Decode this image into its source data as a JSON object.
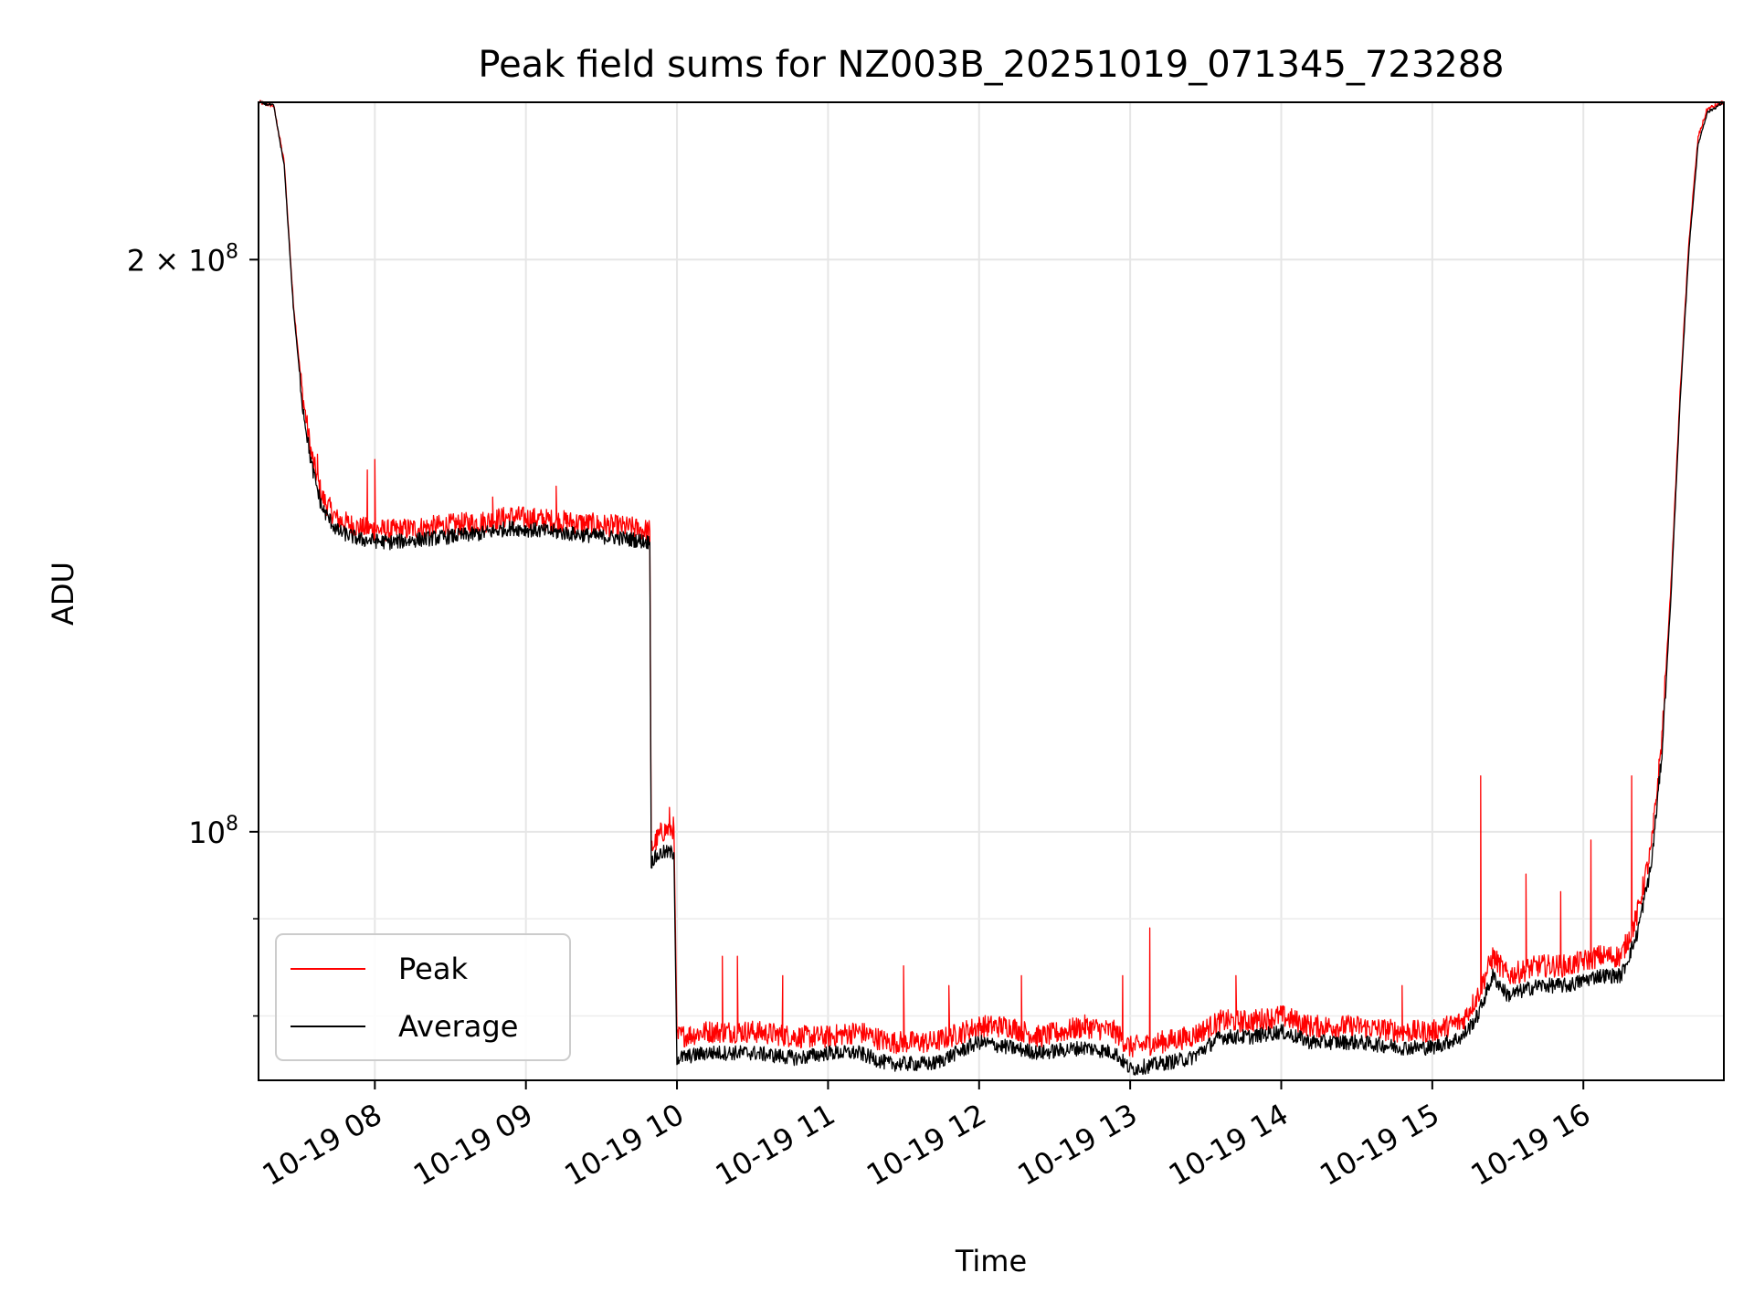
{
  "chart_data": {
    "type": "line",
    "title": "Peak field sums for NZ003B_20251019_071345_723288",
    "xlabel": "Time",
    "ylabel": "ADU",
    "yscale": "log",
    "xlim_hours": [
      7.23,
      16.93
    ],
    "ylim": [
      74000000,
      242000000
    ],
    "x_ticks": [
      {
        "value": 8,
        "label": "10-19 08"
      },
      {
        "value": 9,
        "label": "10-19 09"
      },
      {
        "value": 10,
        "label": "10-19 10"
      },
      {
        "value": 11,
        "label": "10-19 11"
      },
      {
        "value": 12,
        "label": "10-19 12"
      },
      {
        "value": 13,
        "label": "10-19 13"
      },
      {
        "value": 14,
        "label": "10-19 14"
      },
      {
        "value": 15,
        "label": "10-19 15"
      },
      {
        "value": 16,
        "label": "10-19 16"
      }
    ],
    "y_ticks_major": [
      {
        "value": 200000000,
        "base": "2 × 10",
        "exp": "8"
      },
      {
        "value": 100000000,
        "base": "10",
        "exp": "8"
      }
    ],
    "y_ticks_minor": [
      80000000,
      90000000
    ],
    "grid": true,
    "legend_position": "lower-left",
    "series": [
      {
        "name": "Peak",
        "color": "#ff0000",
        "points": [
          [
            7.23,
            242000000
          ],
          [
            7.33,
            241000000
          ],
          [
            7.4,
            225000000
          ],
          [
            7.46,
            190000000
          ],
          [
            7.52,
            170000000
          ],
          [
            7.58,
            158000000
          ],
          [
            7.65,
            150000000
          ],
          [
            7.75,
            146000000
          ],
          [
            7.9,
            144500000
          ],
          [
            8.1,
            144000000
          ],
          [
            8.3,
            144500000
          ],
          [
            8.5,
            145000000
          ],
          [
            8.7,
            145500000
          ],
          [
            8.9,
            146500000
          ],
          [
            9.1,
            146000000
          ],
          [
            9.3,
            145500000
          ],
          [
            9.5,
            145000000
          ],
          [
            9.6,
            144800000
          ],
          [
            9.7,
            144500000
          ],
          [
            9.82,
            144000000
          ],
          [
            9.83,
            98000000
          ],
          [
            9.9,
            100000000
          ],
          [
            9.98,
            100500000
          ],
          [
            10.0,
            78000000
          ],
          [
            10.2,
            78500000
          ],
          [
            10.5,
            78500000
          ],
          [
            10.8,
            78000000
          ],
          [
            11.0,
            78000000
          ],
          [
            11.2,
            78500000
          ],
          [
            11.4,
            77500000
          ],
          [
            11.7,
            77500000
          ],
          [
            12.0,
            79000000
          ],
          [
            12.2,
            79000000
          ],
          [
            12.4,
            78000000
          ],
          [
            12.7,
            79000000
          ],
          [
            12.9,
            78500000
          ],
          [
            13.0,
            77000000
          ],
          [
            13.2,
            77500000
          ],
          [
            13.4,
            78000000
          ],
          [
            13.6,
            79500000
          ],
          [
            13.8,
            79500000
          ],
          [
            14.0,
            80000000
          ],
          [
            14.2,
            79000000
          ],
          [
            14.5,
            79000000
          ],
          [
            14.8,
            78500000
          ],
          [
            15.0,
            78500000
          ],
          [
            15.2,
            79500000
          ],
          [
            15.3,
            82000000
          ],
          [
            15.4,
            86000000
          ],
          [
            15.5,
            84000000
          ],
          [
            15.7,
            85000000
          ],
          [
            15.9,
            85000000
          ],
          [
            16.1,
            86000000
          ],
          [
            16.25,
            86000000
          ],
          [
            16.35,
            90000000
          ],
          [
            16.45,
            98000000
          ],
          [
            16.52,
            112000000
          ],
          [
            16.58,
            135000000
          ],
          [
            16.64,
            170000000
          ],
          [
            16.7,
            205000000
          ],
          [
            16.76,
            232000000
          ],
          [
            16.82,
            240000000
          ],
          [
            16.93,
            242000000
          ]
        ]
      },
      {
        "name": "Average",
        "color": "#000000",
        "points": [
          [
            7.23,
            242000000
          ],
          [
            7.33,
            241000000
          ],
          [
            7.4,
            224000000
          ],
          [
            7.46,
            189000000
          ],
          [
            7.52,
            168000000
          ],
          [
            7.58,
            156000000
          ],
          [
            7.65,
            148000000
          ],
          [
            7.75,
            144000000
          ],
          [
            7.9,
            142500000
          ],
          [
            8.1,
            142000000
          ],
          [
            8.3,
            142500000
          ],
          [
            8.5,
            143000000
          ],
          [
            8.7,
            143500000
          ],
          [
            8.9,
            144500000
          ],
          [
            9.1,
            144000000
          ],
          [
            9.3,
            143500000
          ],
          [
            9.5,
            143000000
          ],
          [
            9.6,
            142800000
          ],
          [
            9.7,
            142500000
          ],
          [
            9.82,
            142000000
          ],
          [
            9.83,
            96500000
          ],
          [
            9.9,
            97500000
          ],
          [
            9.98,
            97500000
          ],
          [
            10.0,
            76000000
          ],
          [
            10.2,
            76500000
          ],
          [
            10.5,
            76500000
          ],
          [
            10.8,
            76000000
          ],
          [
            11.0,
            76500000
          ],
          [
            11.2,
            76500000
          ],
          [
            11.4,
            75500000
          ],
          [
            11.7,
            75500000
          ],
          [
            12.0,
            77500000
          ],
          [
            12.2,
            77000000
          ],
          [
            12.4,
            76500000
          ],
          [
            12.7,
            77000000
          ],
          [
            12.9,
            76500000
          ],
          [
            13.0,
            75000000
          ],
          [
            13.2,
            75500000
          ],
          [
            13.4,
            76000000
          ],
          [
            13.6,
            78000000
          ],
          [
            13.8,
            78000000
          ],
          [
            14.0,
            78500000
          ],
          [
            14.2,
            77500000
          ],
          [
            14.5,
            77500000
          ],
          [
            14.8,
            77000000
          ],
          [
            15.0,
            77000000
          ],
          [
            15.2,
            78000000
          ],
          [
            15.3,
            80000000
          ],
          [
            15.4,
            84000000
          ],
          [
            15.5,
            82000000
          ],
          [
            15.7,
            83000000
          ],
          [
            15.9,
            83000000
          ],
          [
            16.1,
            84000000
          ],
          [
            16.25,
            84000000
          ],
          [
            16.35,
            88000000
          ],
          [
            16.45,
            96000000
          ],
          [
            16.52,
            110000000
          ],
          [
            16.58,
            133000000
          ],
          [
            16.64,
            168000000
          ],
          [
            16.7,
            203000000
          ],
          [
            16.76,
            230000000
          ],
          [
            16.82,
            239000000
          ],
          [
            16.93,
            242000000
          ]
        ]
      }
    ],
    "spikes": [
      [
        7.62,
        158000000
      ],
      [
        7.95,
        155000000
      ],
      [
        8.0,
        157000000
      ],
      [
        8.78,
        150000000
      ],
      [
        9.2,
        152000000
      ],
      [
        9.95,
        103000000
      ],
      [
        10.3,
        86000000
      ],
      [
        10.4,
        86000000
      ],
      [
        10.7,
        84000000
      ],
      [
        11.5,
        85000000
      ],
      [
        11.8,
        83000000
      ],
      [
        12.28,
        84000000
      ],
      [
        12.95,
        84000000
      ],
      [
        13.13,
        89000000
      ],
      [
        13.7,
        84000000
      ],
      [
        14.8,
        83000000
      ],
      [
        15.32,
        107000000
      ],
      [
        15.62,
        95000000
      ],
      [
        15.85,
        93000000
      ],
      [
        16.05,
        99000000
      ],
      [
        16.32,
        107000000
      ]
    ]
  }
}
